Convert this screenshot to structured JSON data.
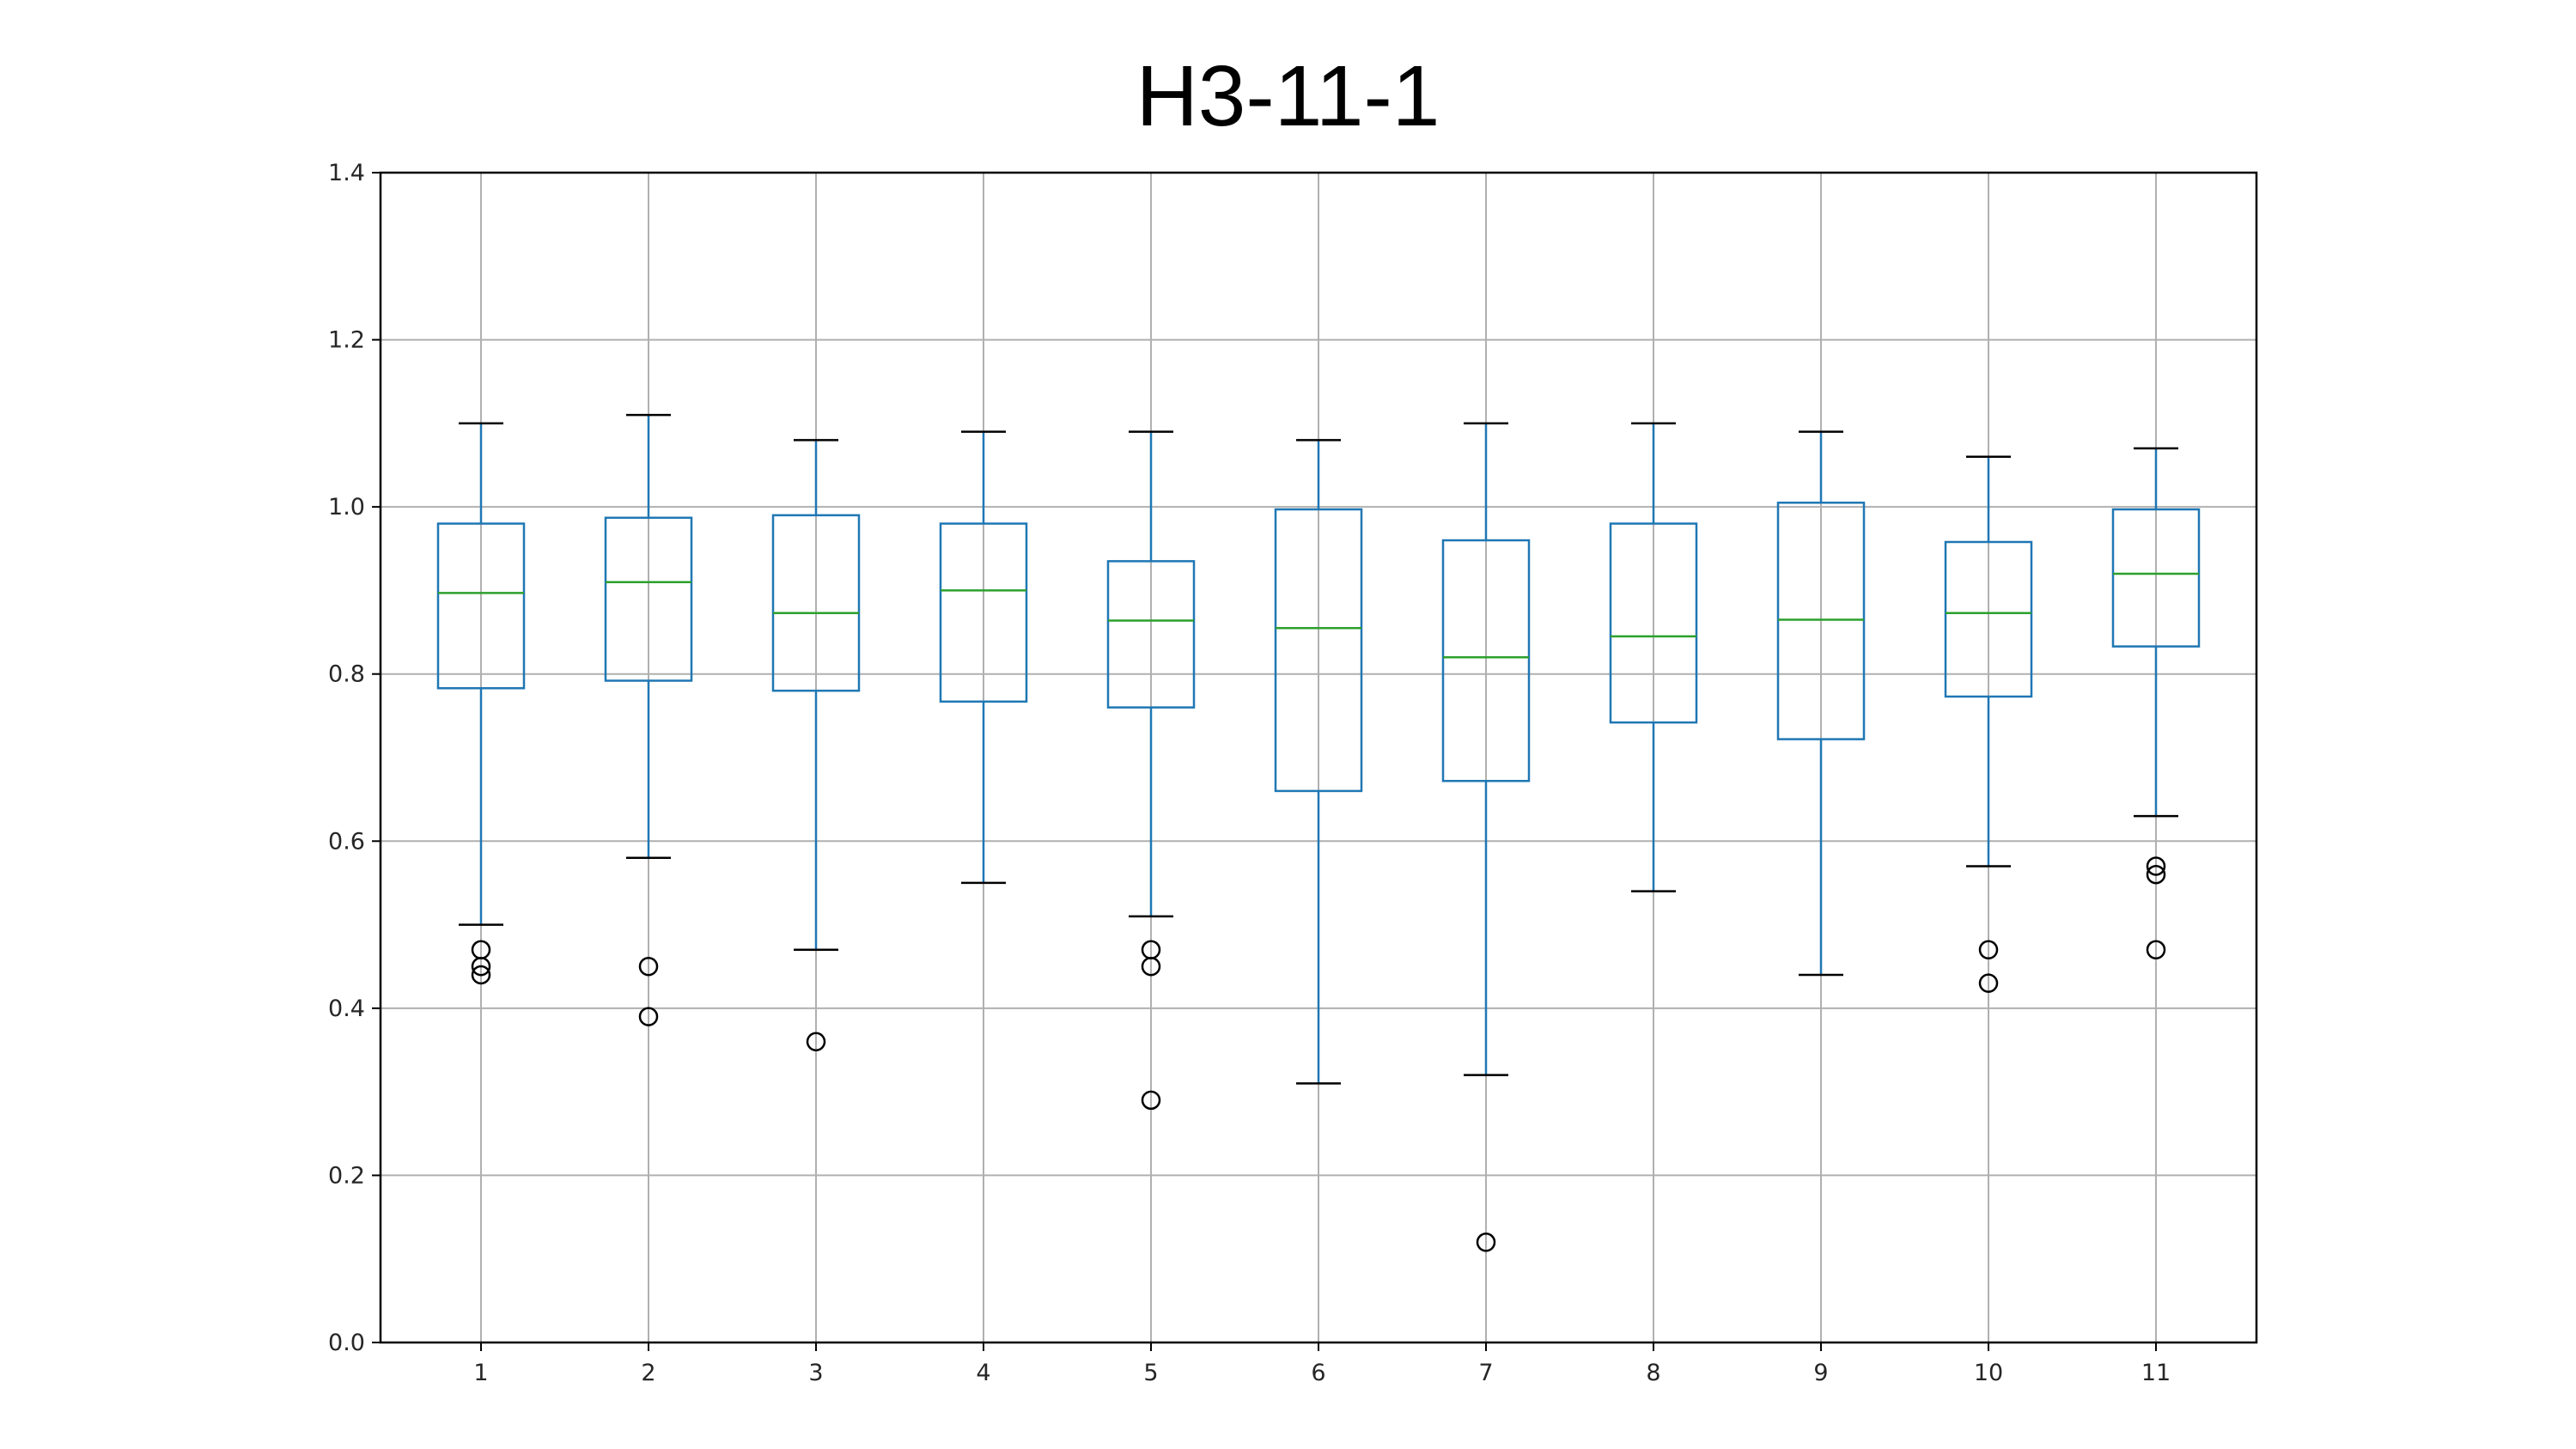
{
  "chart_data": {
    "type": "box",
    "title": "H3-11-1",
    "xlabel": "",
    "ylabel": "",
    "ylim": [
      0.0,
      1.4
    ],
    "yticks": [
      "0.0",
      "0.2",
      "0.4",
      "0.6",
      "0.8",
      "1.0",
      "1.2",
      "1.4"
    ],
    "categories": [
      "1",
      "2",
      "3",
      "4",
      "5",
      "6",
      "7",
      "8",
      "9",
      "10",
      "11"
    ],
    "grid": true,
    "colors": {
      "box": "#1f77b4",
      "median": "#2ca02c",
      "whisker_cap": "#000000",
      "outlier": "#000000",
      "grid": "#b0b0b0"
    },
    "boxes": [
      {
        "label": "1",
        "whislo": 0.5,
        "q1": 0.783,
        "med": 0.897,
        "q3": 0.98,
        "whishi": 1.1,
        "fliers": [
          0.47,
          0.45,
          0.44
        ]
      },
      {
        "label": "2",
        "whislo": 0.58,
        "q1": 0.792,
        "med": 0.91,
        "q3": 0.987,
        "whishi": 1.11,
        "fliers": [
          0.45,
          0.39
        ]
      },
      {
        "label": "3",
        "whislo": 0.47,
        "q1": 0.78,
        "med": 0.873,
        "q3": 0.99,
        "whishi": 1.08,
        "fliers": [
          0.36
        ]
      },
      {
        "label": "4",
        "whislo": 0.55,
        "q1": 0.767,
        "med": 0.9,
        "q3": 0.98,
        "whishi": 1.09,
        "fliers": []
      },
      {
        "label": "5",
        "whislo": 0.51,
        "q1": 0.76,
        "med": 0.864,
        "q3": 0.935,
        "whishi": 1.09,
        "fliers": [
          0.47,
          0.45,
          0.29
        ]
      },
      {
        "label": "6",
        "whislo": 0.31,
        "q1": 0.66,
        "med": 0.855,
        "q3": 0.997,
        "whishi": 1.08,
        "fliers": []
      },
      {
        "label": "7",
        "whislo": 0.32,
        "q1": 0.672,
        "med": 0.82,
        "q3": 0.96,
        "whishi": 1.1,
        "fliers": [
          0.12
        ]
      },
      {
        "label": "8",
        "whislo": 0.54,
        "q1": 0.742,
        "med": 0.845,
        "q3": 0.98,
        "whishi": 1.1,
        "fliers": []
      },
      {
        "label": "9",
        "whislo": 0.44,
        "q1": 0.722,
        "med": 0.865,
        "q3": 1.005,
        "whishi": 1.09,
        "fliers": []
      },
      {
        "label": "10",
        "whislo": 0.57,
        "q1": 0.773,
        "med": 0.873,
        "q3": 0.958,
        "whishi": 1.06,
        "fliers": [
          0.47,
          0.43
        ]
      },
      {
        "label": "11",
        "whislo": 0.63,
        "q1": 0.833,
        "med": 0.92,
        "q3": 0.997,
        "whishi": 1.07,
        "fliers": [
          0.57,
          0.56,
          0.47
        ]
      }
    ]
  }
}
